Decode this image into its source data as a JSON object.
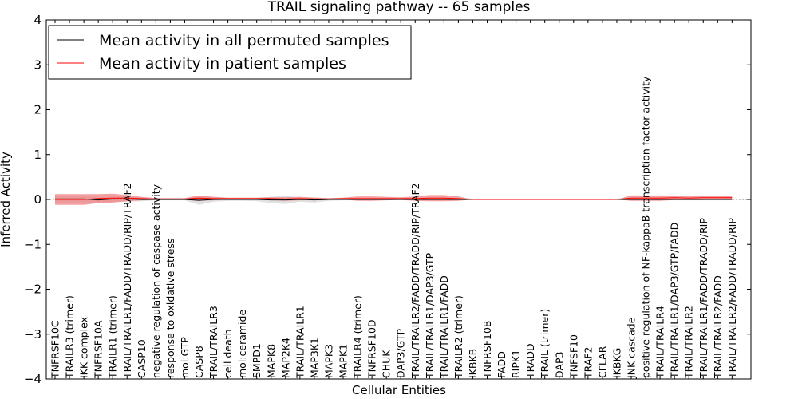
{
  "chart_data": {
    "type": "line",
    "title": "TRAIL signaling pathway -- 65 samples",
    "xlabel": "Cellular Entities",
    "ylabel": "Inferred Activity",
    "ylim": [
      -4,
      4
    ],
    "yticks": [
      -4,
      -3,
      -2,
      -1,
      0,
      1,
      2,
      3,
      4
    ],
    "ytick_labels": [
      "−4",
      "−3",
      "−2",
      "−1",
      "0",
      "1",
      "2",
      "3",
      "4"
    ],
    "legend_position": "top-left",
    "categories": [
      "TNFRSF10C",
      "TRAILR3 (trimer)",
      "IKK complex",
      "TNFRSF10A",
      "TRAILR1 (trimer)",
      "TRAIL/TRAILR1/FADD/TRADD/RIP/TRAF2",
      "CASP10",
      "negative regulation of caspase activity",
      "response to oxidative stress",
      "mol:GTP",
      "CASP8",
      "TRAIL/TRAILR3",
      "cell death",
      "mol:ceramide",
      "SMPD1",
      "MAPK8",
      "MAP2K4",
      "TRAIL/TRAILR1",
      "MAP3K1",
      "MAPK3",
      "MAPK1",
      "TRAILR4 (trimer)",
      "TNFRSF10D",
      "CHUK",
      "DAP3/GTP",
      "TRAIL/TRAILR2/FADD/TRADD/RIP/TRAF2",
      "TRAIL/TRAILR1/DAP3/GTP",
      "TRAIL/TRAILR1/FADD",
      "TRAILR2 (trimer)",
      "IKBKB",
      "TNFRSF10B",
      "FADD",
      "RIPK1",
      "TRADD",
      "TRAIL (trimer)",
      "DAP3",
      "TNFSF10",
      "TRAF2",
      "CFLAR",
      "IKBKG",
      "JNK cascade",
      "positive regulation of NF-kappaB transcription factor activity",
      "TRAIL/TRAILR4",
      "TRAIL/TRAILR1/DAP3/GTP/FADD",
      "TRAIL/TRAILR2",
      "TRAIL/TRAILR1/FADD/TRADD/RIP",
      "TRAIL/TRAILR2/FADD",
      "TRAIL/TRAILR2/FADD/TRADD/RIP"
    ],
    "series": [
      {
        "name": "Mean activity in all permuted samples",
        "color": "#000000",
        "band_color": "#d3d3d3",
        "values": [
          0.01,
          0.01,
          0.01,
          -0.01,
          0.01,
          0.01,
          0.0,
          0.0,
          0.0,
          0.0,
          -0.02,
          0.0,
          0.0,
          0.0,
          0.0,
          -0.01,
          -0.01,
          0.0,
          -0.01,
          0.0,
          0.0,
          0.0,
          0.0,
          0.0,
          0.0,
          0.0,
          0.0,
          0.0,
          0.0,
          0.0,
          0.0,
          0.0,
          0.0,
          0.0,
          0.0,
          0.0,
          0.0,
          0.0,
          0.0,
          0.0,
          0.0,
          0.0,
          0.0,
          0.0,
          0.0,
          0.0,
          0.0,
          0.0
        ],
        "band": [
          0.07,
          0.07,
          0.07,
          0.06,
          0.07,
          0.06,
          0.04,
          0.02,
          0.02,
          0.02,
          0.1,
          0.05,
          0.03,
          0.03,
          0.04,
          0.07,
          0.09,
          0.05,
          0.06,
          0.03,
          0.02,
          0.02,
          0.02,
          0.01,
          0.01,
          0.02,
          0.02,
          0.02,
          0.02,
          0.01,
          0.01,
          0.01,
          0.01,
          0.01,
          0.01,
          0.01,
          0.01,
          0.01,
          0.01,
          0.01,
          0.02,
          0.02,
          0.02,
          0.02,
          0.02,
          0.02,
          0.02,
          0.02
        ]
      },
      {
        "name": "Mean activity in patient samples",
        "color": "#ff0000",
        "band_color": "#f08080",
        "values": [
          0.0,
          0.0,
          0.0,
          0.02,
          0.03,
          0.03,
          0.02,
          0.01,
          0.01,
          0.01,
          0.03,
          0.02,
          0.02,
          0.02,
          0.02,
          0.02,
          0.01,
          0.02,
          0.01,
          0.01,
          0.02,
          0.02,
          0.02,
          0.02,
          0.02,
          0.02,
          0.03,
          0.03,
          0.02,
          0.0,
          0.0,
          0.0,
          0.0,
          0.0,
          0.0,
          0.0,
          0.0,
          0.0,
          0.0,
          0.0,
          0.03,
          0.03,
          0.03,
          0.04,
          0.03,
          0.04,
          0.04,
          0.04
        ],
        "band": [
          0.12,
          0.12,
          0.12,
          0.1,
          0.1,
          0.07,
          0.04,
          0.02,
          0.02,
          0.02,
          0.06,
          0.04,
          0.02,
          0.02,
          0.02,
          0.03,
          0.04,
          0.04,
          0.03,
          0.02,
          0.02,
          0.05,
          0.05,
          0.04,
          0.03,
          0.05,
          0.07,
          0.07,
          0.05,
          0.0,
          0.0,
          0.0,
          0.0,
          0.0,
          0.0,
          0.0,
          0.0,
          0.0,
          0.0,
          0.0,
          0.06,
          0.06,
          0.06,
          0.05,
          0.04,
          0.05,
          0.04,
          0.04
        ]
      }
    ]
  }
}
